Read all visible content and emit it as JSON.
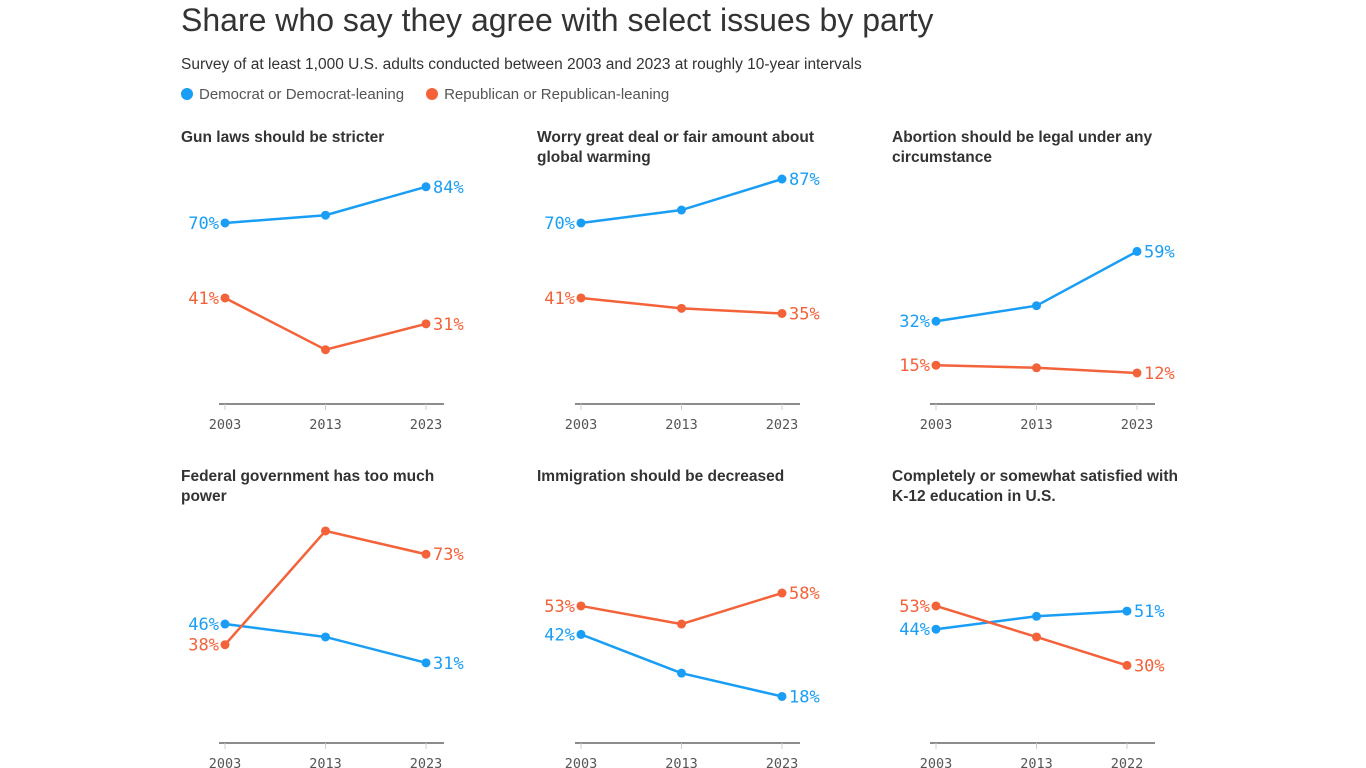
{
  "chart_data": {
    "type": "line",
    "title": "Share who say they agree with select issues by party",
    "subtitle": "Survey of at least 1,000 U.S. adults conducted between 2003 and 2023 at roughly 10-year intervals",
    "legend": [
      {
        "name": "Democrat or Democrat-leaning",
        "color": "#1A9EF5"
      },
      {
        "name": "Republican or Republican-leaning",
        "color": "#F4623A"
      }
    ],
    "ylim": [
      0,
      100
    ],
    "panels": [
      {
        "title": "Gun laws should be stricter",
        "x": [
          2003,
          2013,
          2023
        ],
        "series": [
          {
            "name": "Democrat or Democrat-leaning",
            "values": [
              70,
              73,
              84
            ]
          },
          {
            "name": "Republican or Republican-leaning",
            "values": [
              41,
              21,
              31
            ]
          }
        ]
      },
      {
        "title": "Worry great deal or fair amount about global warming",
        "x": [
          2003,
          2013,
          2023
        ],
        "series": [
          {
            "name": "Democrat or Democrat-leaning",
            "values": [
              70,
              75,
              87
            ]
          },
          {
            "name": "Republican or Republican-leaning",
            "values": [
              41,
              37,
              35
            ]
          }
        ]
      },
      {
        "title": "Abortion should be legal under any circumstance",
        "x": [
          2003,
          2013,
          2023
        ],
        "series": [
          {
            "name": "Democrat or Democrat-leaning",
            "values": [
              32,
              38,
              59
            ]
          },
          {
            "name": "Republican or Republican-leaning",
            "values": [
              15,
              14,
              12
            ]
          }
        ]
      },
      {
        "title": "Federal government has too much power",
        "x": [
          2003,
          2013,
          2023
        ],
        "series": [
          {
            "name": "Democrat or Democrat-leaning",
            "values": [
              46,
              41,
              31
            ]
          },
          {
            "name": "Republican or Republican-leaning",
            "values": [
              38,
              82,
              73
            ]
          }
        ]
      },
      {
        "title": "Immigration should be decreased",
        "x": [
          2003,
          2013,
          2023
        ],
        "series": [
          {
            "name": "Democrat or Democrat-leaning",
            "values": [
              42,
              27,
              18
            ]
          },
          {
            "name": "Republican or Republican-leaning",
            "values": [
              53,
              46,
              58
            ]
          }
        ]
      },
      {
        "title": "Completely or somewhat satisfied with K-12 education in U.S.",
        "x": [
          2003,
          2013,
          2022
        ],
        "series": [
          {
            "name": "Democrat or Democrat-leaning",
            "values": [
              44,
              49,
              51
            ]
          },
          {
            "name": "Republican or Republican-leaning",
            "values": [
              53,
              41,
              30
            ]
          }
        ]
      }
    ]
  }
}
